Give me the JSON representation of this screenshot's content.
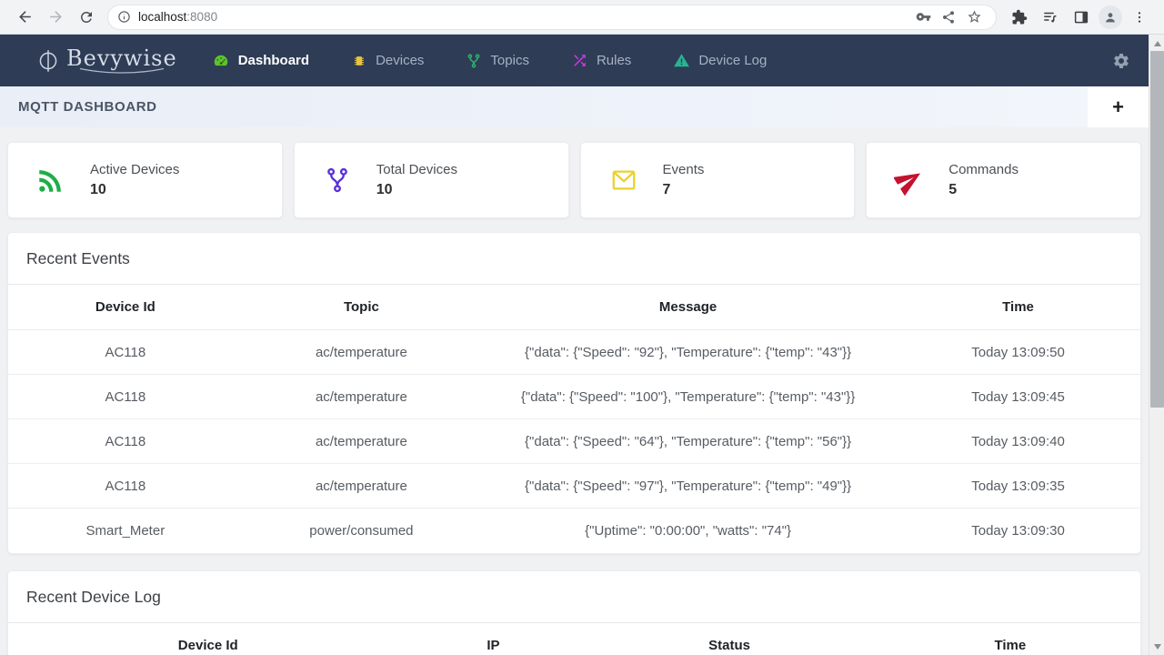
{
  "browser": {
    "url_host": "localhost",
    "url_port": ":8080"
  },
  "navbar": {
    "brand": "Bevywise",
    "items": [
      {
        "label": "Dashboard",
        "color": "#5cc22f",
        "active": true
      },
      {
        "label": "Devices",
        "color": "#e7c33f",
        "active": false
      },
      {
        "label": "Topics",
        "color": "#2eb872",
        "active": false
      },
      {
        "label": "Rules",
        "color": "#c13bdb",
        "active": false
      },
      {
        "label": "Device Log",
        "color": "#27b593",
        "active": false
      }
    ],
    "gear_color": "#96a0b3"
  },
  "page_header": {
    "title": "MQTT DASHBOARD",
    "add_button": "+"
  },
  "stats": [
    {
      "label": "Active Devices",
      "value": "10",
      "icon": "rss-icon",
      "color": "#1fae47"
    },
    {
      "label": "Total Devices",
      "value": "10",
      "icon": "branch-icon",
      "color": "#5a2fd8"
    },
    {
      "label": "Events",
      "value": "7",
      "icon": "envelope-icon",
      "color": "#ecd02e"
    },
    {
      "label": "Commands",
      "value": "5",
      "icon": "paper-plane-icon",
      "color": "#c4122f"
    }
  ],
  "recent_events": {
    "title": "Recent Events",
    "columns": [
      "Device Id",
      "Topic",
      "Message",
      "Time"
    ],
    "rows": [
      [
        "AC118",
        "ac/temperature",
        "{\"data\": {\"Speed\": \"92\"}, \"Temperature\": {\"temp\": \"43\"}}",
        "Today 13:09:50"
      ],
      [
        "AC118",
        "ac/temperature",
        "{\"data\": {\"Speed\": \"100\"}, \"Temperature\": {\"temp\": \"43\"}}",
        "Today 13:09:45"
      ],
      [
        "AC118",
        "ac/temperature",
        "{\"data\": {\"Speed\": \"64\"}, \"Temperature\": {\"temp\": \"56\"}}",
        "Today 13:09:40"
      ],
      [
        "AC118",
        "ac/temperature",
        "{\"data\": {\"Speed\": \"97\"}, \"Temperature\": {\"temp\": \"49\"}}",
        "Today 13:09:35"
      ],
      [
        "Smart_Meter",
        "power/consumed",
        "{\"Uptime\": \"0:00:00\", \"watts\": \"74\"}",
        "Today 13:09:30"
      ]
    ]
  },
  "recent_device_log": {
    "title": "Recent Device Log",
    "columns": [
      "Device Id",
      "IP",
      "Status",
      "Time"
    ],
    "rows": []
  }
}
